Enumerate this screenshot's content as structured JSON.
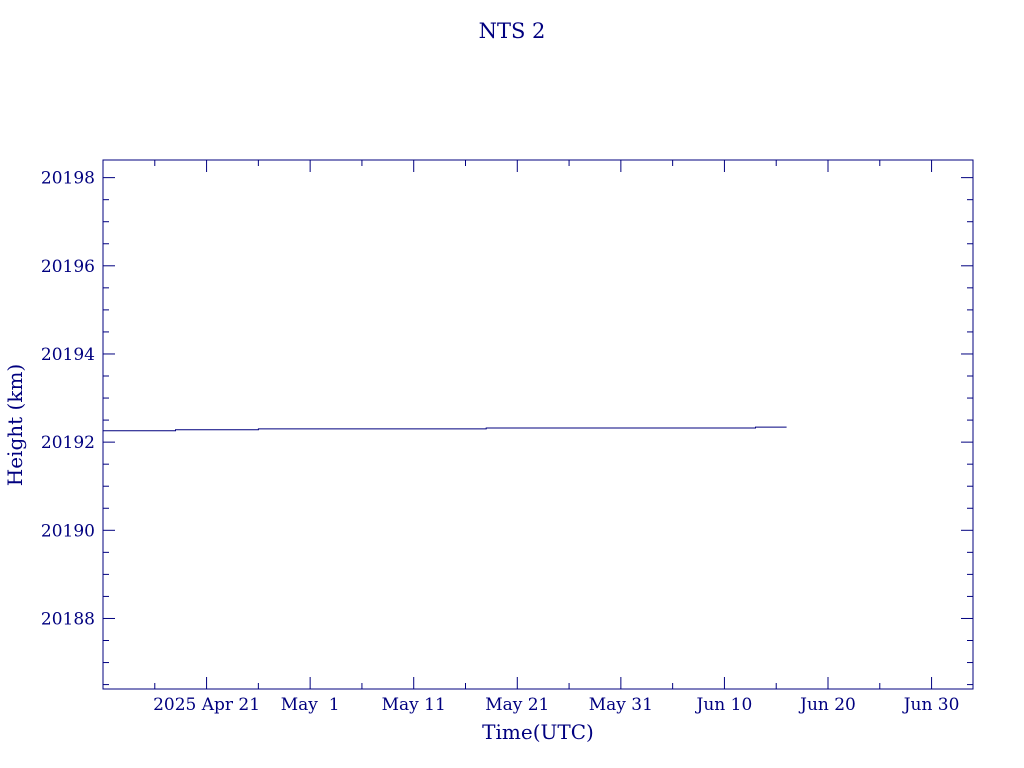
{
  "chart_data": {
    "type": "line",
    "title": "NTS 2",
    "xlabel": "Time(UTC)",
    "ylabel": "Height (km)",
    "x_tick_labels": [
      "2025 Apr 21",
      "May  1",
      "May 11",
      "May 21",
      "May 31",
      "Jun 10",
      "Jun 20",
      "Jun 30"
    ],
    "x_tick_dates": [
      "2025-04-21",
      "2025-05-01",
      "2025-05-11",
      "2025-05-21",
      "2025-05-31",
      "2025-06-10",
      "2025-06-20",
      "2025-06-30"
    ],
    "x_minor_tick_dates": [
      "2025-04-16",
      "2025-04-26",
      "2025-05-06",
      "2025-05-16",
      "2025-05-26",
      "2025-06-05",
      "2025-06-15",
      "2025-06-25"
    ],
    "y_tick_labels": [
      "20188",
      "20190",
      "20192",
      "20194",
      "20196",
      "20198"
    ],
    "y_tick_values": [
      20188,
      20190,
      20192,
      20194,
      20196,
      20198
    ],
    "y_minor_step": 0.5,
    "xlim": [
      "2025-04-11",
      "2025-07-04"
    ],
    "ylim": [
      20186.4,
      20198.4
    ],
    "grid": false,
    "line_color": "#00007f",
    "series": [
      {
        "x": [
          "2025-04-11",
          "2025-04-18",
          "2025-04-18",
          "2025-04-26",
          "2025-04-26",
          "2025-05-18",
          "2025-05-18",
          "2025-06-13",
          "2025-06-13",
          "2025-06-16"
        ],
        "y": [
          20192.26,
          20192.26,
          20192.28,
          20192.28,
          20192.3,
          20192.3,
          20192.32,
          20192.32,
          20192.34,
          20192.34
        ]
      }
    ]
  }
}
